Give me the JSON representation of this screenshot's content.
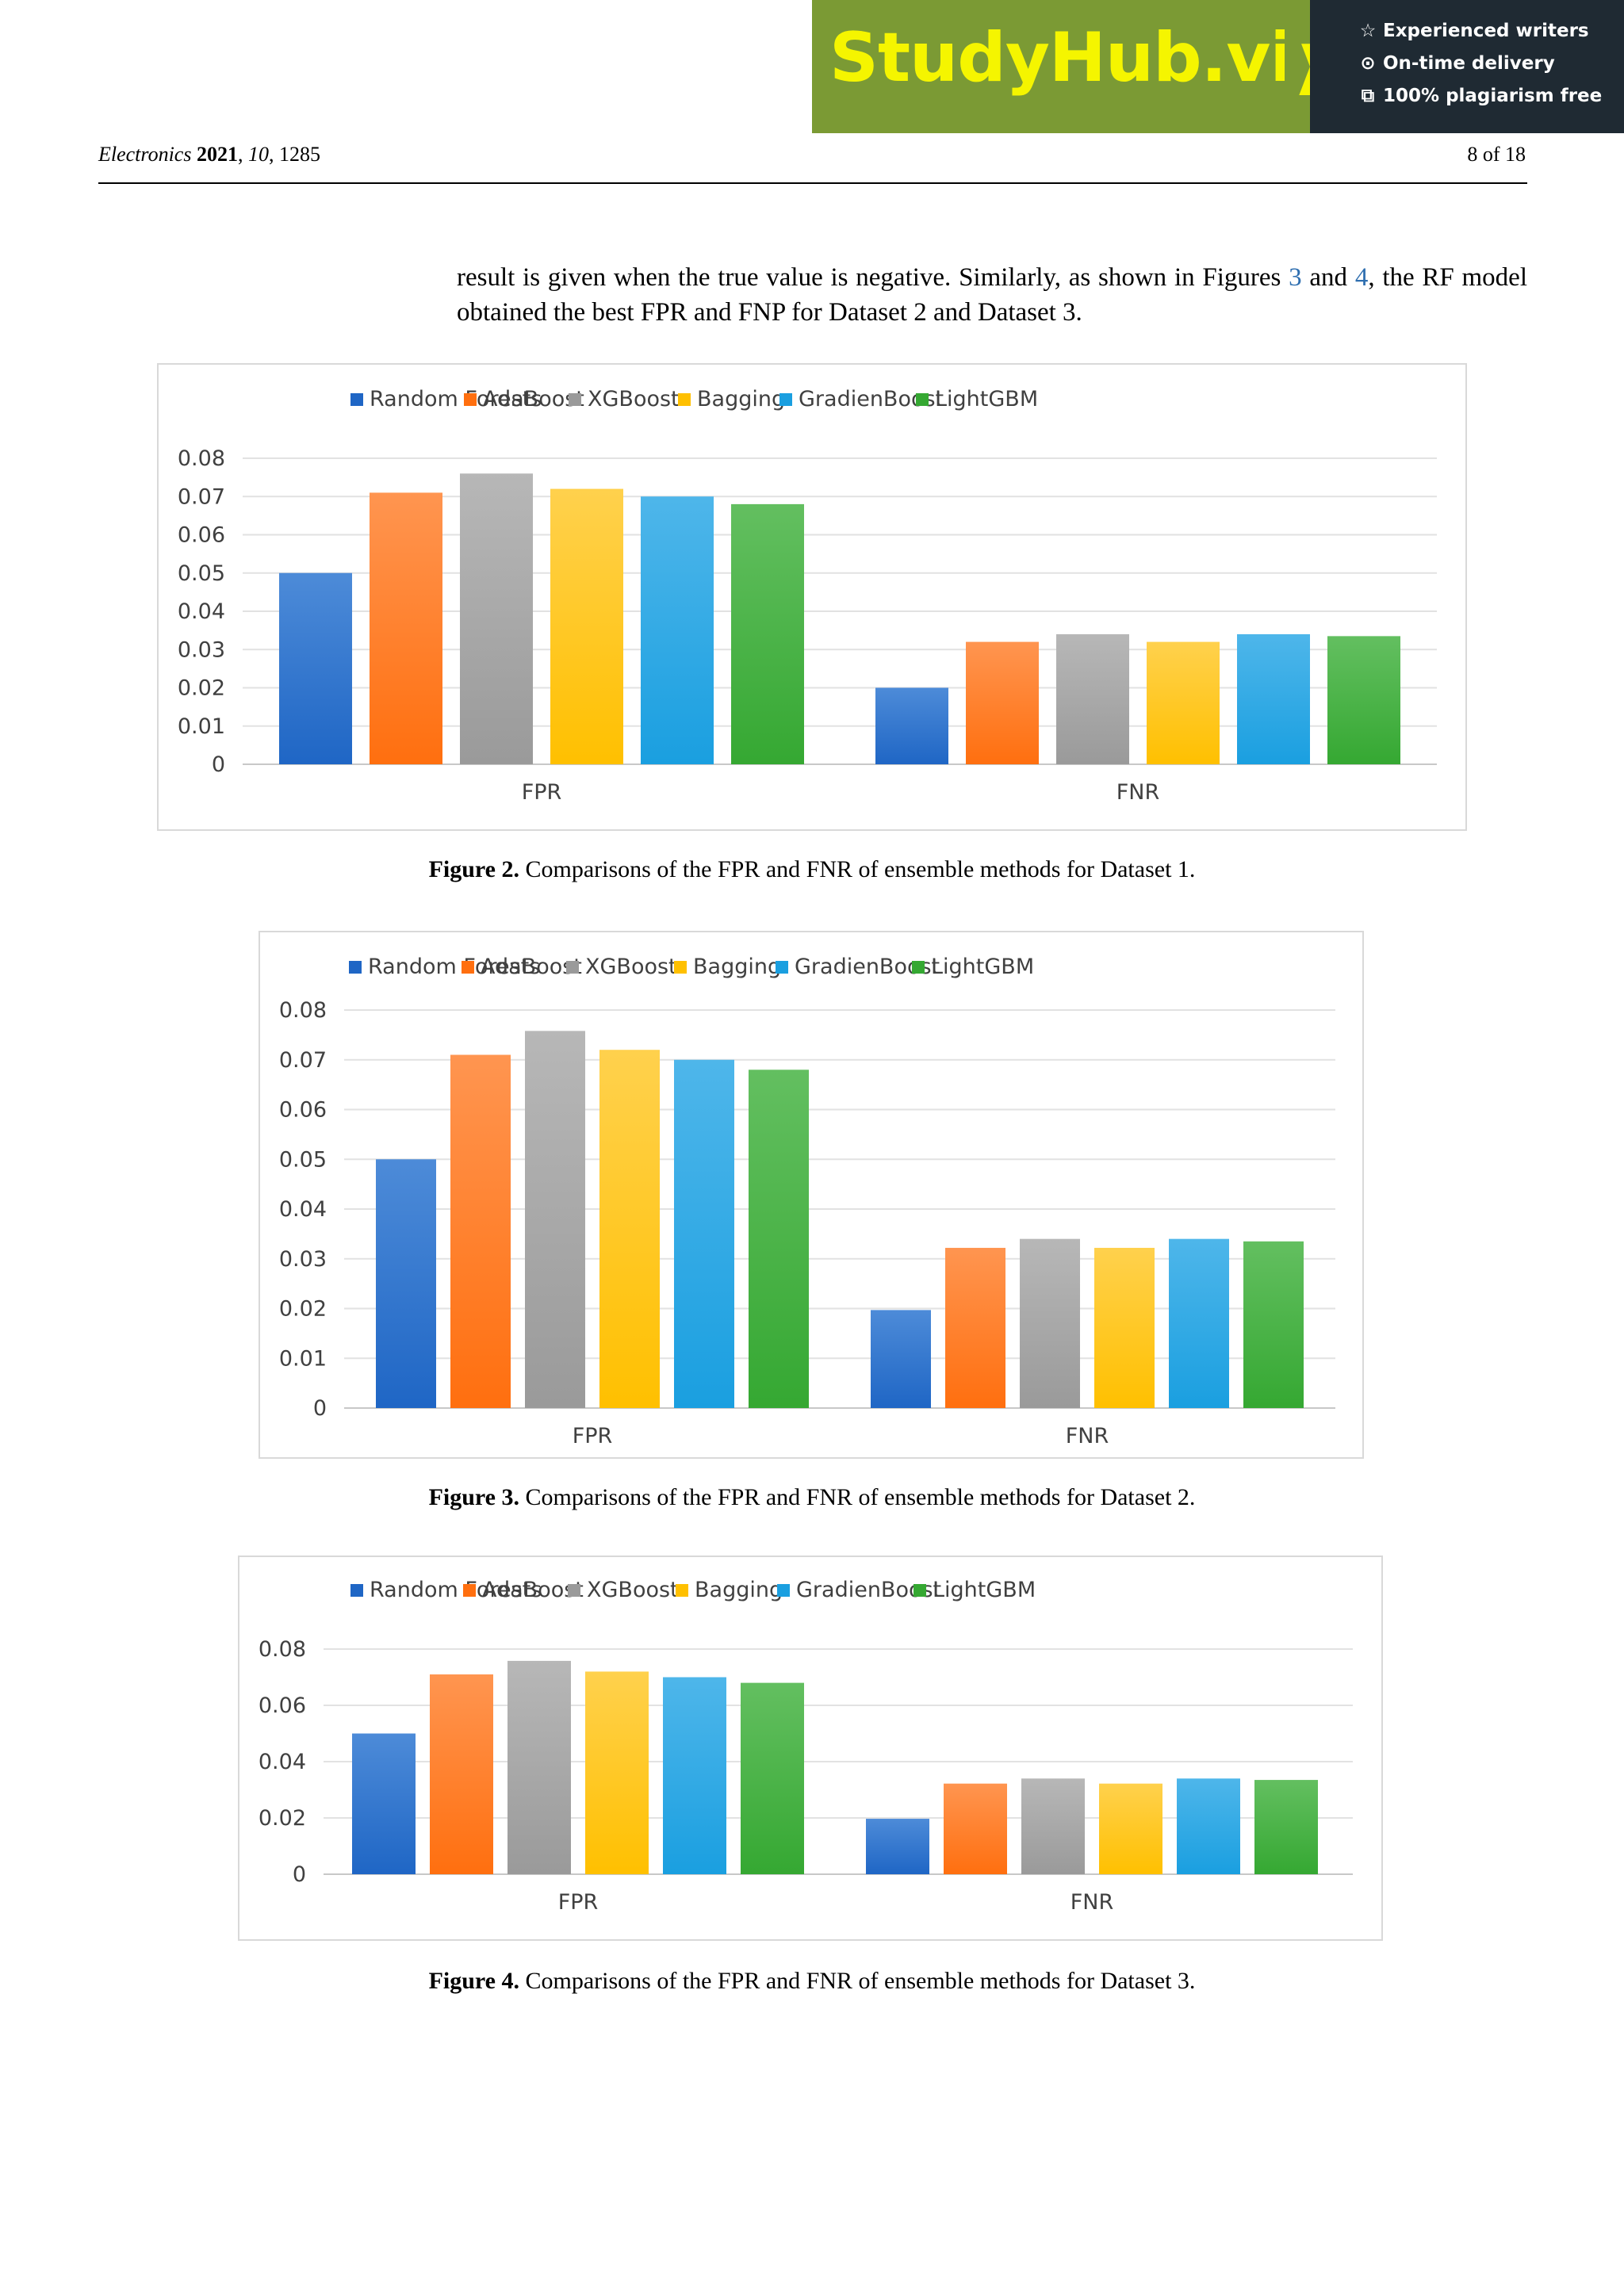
{
  "banner": {
    "brand": "StudyHub.vip",
    "items": [
      {
        "icon": "star-outline-icon",
        "glyph": "☆",
        "text": "Experienced writers"
      },
      {
        "icon": "clock-icon",
        "glyph": "⊙",
        "text": "On-time delivery"
      },
      {
        "icon": "copy-icon",
        "glyph": "⧉",
        "text": "100% plagiarism free"
      }
    ]
  },
  "header": {
    "journal": "Electronics",
    "year": "2021",
    "volume": "10",
    "article": ", 1285",
    "page": "8 of 18"
  },
  "body": {
    "text_1": "result is given when the true value is negative. Similarly, as shown in Figures ",
    "ref_a": "3",
    "text_2": " and ",
    "ref_b": "4",
    "text_3": ", the RF model obtained the best FPR and FNP for Dataset 2 and Dataset 3."
  },
  "colors": {
    "series": [
      "#1f66c5",
      "#ff6f0f",
      "#9a9a9a",
      "#ffc000",
      "#1a9fe0",
      "#35a832"
    ],
    "series_top": [
      "#4d8bd8",
      "#ff9550",
      "#b7b7b7",
      "#ffd14d",
      "#4eb6ea",
      "#63bf60"
    ]
  },
  "captions": [
    {
      "label": "Figure 2.",
      "text": " Comparisons of the FPR and FNR of ensemble methods for Dataset 1."
    },
    {
      "label": "Figure 3.",
      "text": " Comparisons of the FPR and FNR of ensemble methods for Dataset 2."
    },
    {
      "label": "Figure 4.",
      "text": " Comparisons of the FPR and FNR of ensemble methods for Dataset 3."
    }
  ],
  "chart_data": [
    {
      "type": "bar",
      "title": "",
      "categories": [
        "FPR",
        "FNR"
      ],
      "series": [
        {
          "name": "Random Forests",
          "values": [
            0.05,
            0.02
          ]
        },
        {
          "name": "AdaBoost",
          "values": [
            0.071,
            0.032
          ]
        },
        {
          "name": "XGBoost",
          "values": [
            0.076,
            0.034
          ]
        },
        {
          "name": "Bagging",
          "values": [
            0.072,
            0.032
          ]
        },
        {
          "name": "GradienBoost",
          "values": [
            0.07,
            0.034
          ]
        },
        {
          "name": "LightGBM",
          "values": [
            0.068,
            0.0335
          ]
        }
      ],
      "ylim": [
        0,
        0.08
      ],
      "yticks": [
        "0",
        "0.01",
        "0.02",
        "0.03",
        "0.04",
        "0.05",
        "0.06",
        "0.07",
        "0.08"
      ],
      "grid": true,
      "legend": "top"
    },
    {
      "type": "bar",
      "title": "",
      "categories": [
        "FPR",
        "FNR"
      ],
      "series": [
        {
          "name": "Random Forests",
          "values": [
            0.05,
            0.0197
          ]
        },
        {
          "name": "AdaBoost",
          "values": [
            0.071,
            0.0322
          ]
        },
        {
          "name": "XGBoost",
          "values": [
            0.0758,
            0.034
          ]
        },
        {
          "name": "Bagging",
          "values": [
            0.072,
            0.0322
          ]
        },
        {
          "name": "GradienBoost",
          "values": [
            0.07,
            0.034
          ]
        },
        {
          "name": "LightGBM",
          "values": [
            0.068,
            0.0335
          ]
        }
      ],
      "ylim": [
        0,
        0.08
      ],
      "yticks": [
        "0",
        "0.01",
        "0.02",
        "0.03",
        "0.04",
        "0.05",
        "0.06",
        "0.07",
        "0.08"
      ],
      "grid": true,
      "legend": "top"
    },
    {
      "type": "bar",
      "title": "",
      "categories": [
        "FPR",
        "FNR"
      ],
      "series": [
        {
          "name": "Random Forests",
          "values": [
            0.05,
            0.0197
          ]
        },
        {
          "name": "AdaBoost",
          "values": [
            0.071,
            0.0322
          ]
        },
        {
          "name": "XGBoost",
          "values": [
            0.0758,
            0.034
          ]
        },
        {
          "name": "Bagging",
          "values": [
            0.072,
            0.0322
          ]
        },
        {
          "name": "GradienBoost",
          "values": [
            0.07,
            0.034
          ]
        },
        {
          "name": "LightGBM",
          "values": [
            0.068,
            0.0335
          ]
        }
      ],
      "ylim": [
        0,
        0.08
      ],
      "yticks": [
        "0",
        "0.02",
        "0.04",
        "0.06",
        "0.08"
      ],
      "grid": true,
      "legend": "top"
    }
  ]
}
